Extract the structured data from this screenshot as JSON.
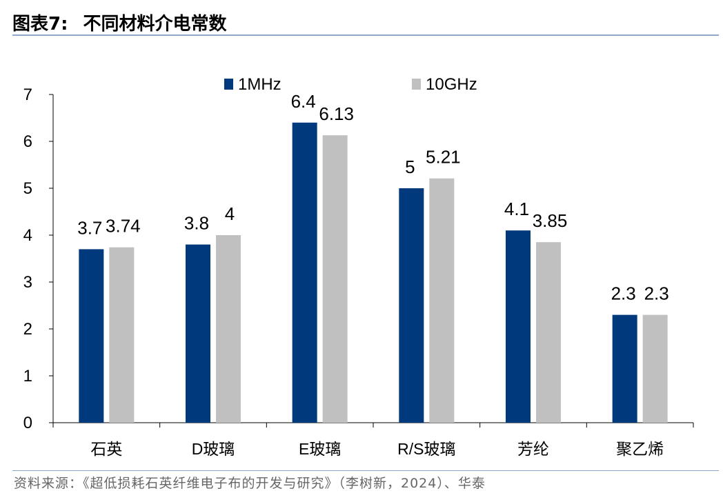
{
  "figure": {
    "label": "图表7:",
    "title": "不同材料介电常数"
  },
  "source": "资料来源：《超低损耗石英纤维电子布的开发与研究》（李树新，2024）、华泰",
  "colors": {
    "series_1": "#003a7d",
    "series_2": "#c0c0c0",
    "rule": "#8ea9c8"
  },
  "chart_data": {
    "type": "bar",
    "title": "不同材料介电常数",
    "xlabel": "",
    "ylabel": "",
    "ylim": [
      0,
      7
    ],
    "yticks": [
      0,
      1,
      2,
      3,
      4,
      5,
      6,
      7
    ],
    "grid": false,
    "legend_position": "top-center",
    "categories": [
      "石英",
      "D玻璃",
      "E玻璃",
      "R/S玻璃",
      "芳纶",
      "聚乙烯"
    ],
    "series": [
      {
        "name": "1MHz",
        "values": [
          3.7,
          3.8,
          6.4,
          5,
          4.1,
          2.3
        ]
      },
      {
        "name": "10GHz",
        "values": [
          3.74,
          4,
          6.13,
          5.21,
          3.85,
          2.3
        ]
      }
    ]
  }
}
